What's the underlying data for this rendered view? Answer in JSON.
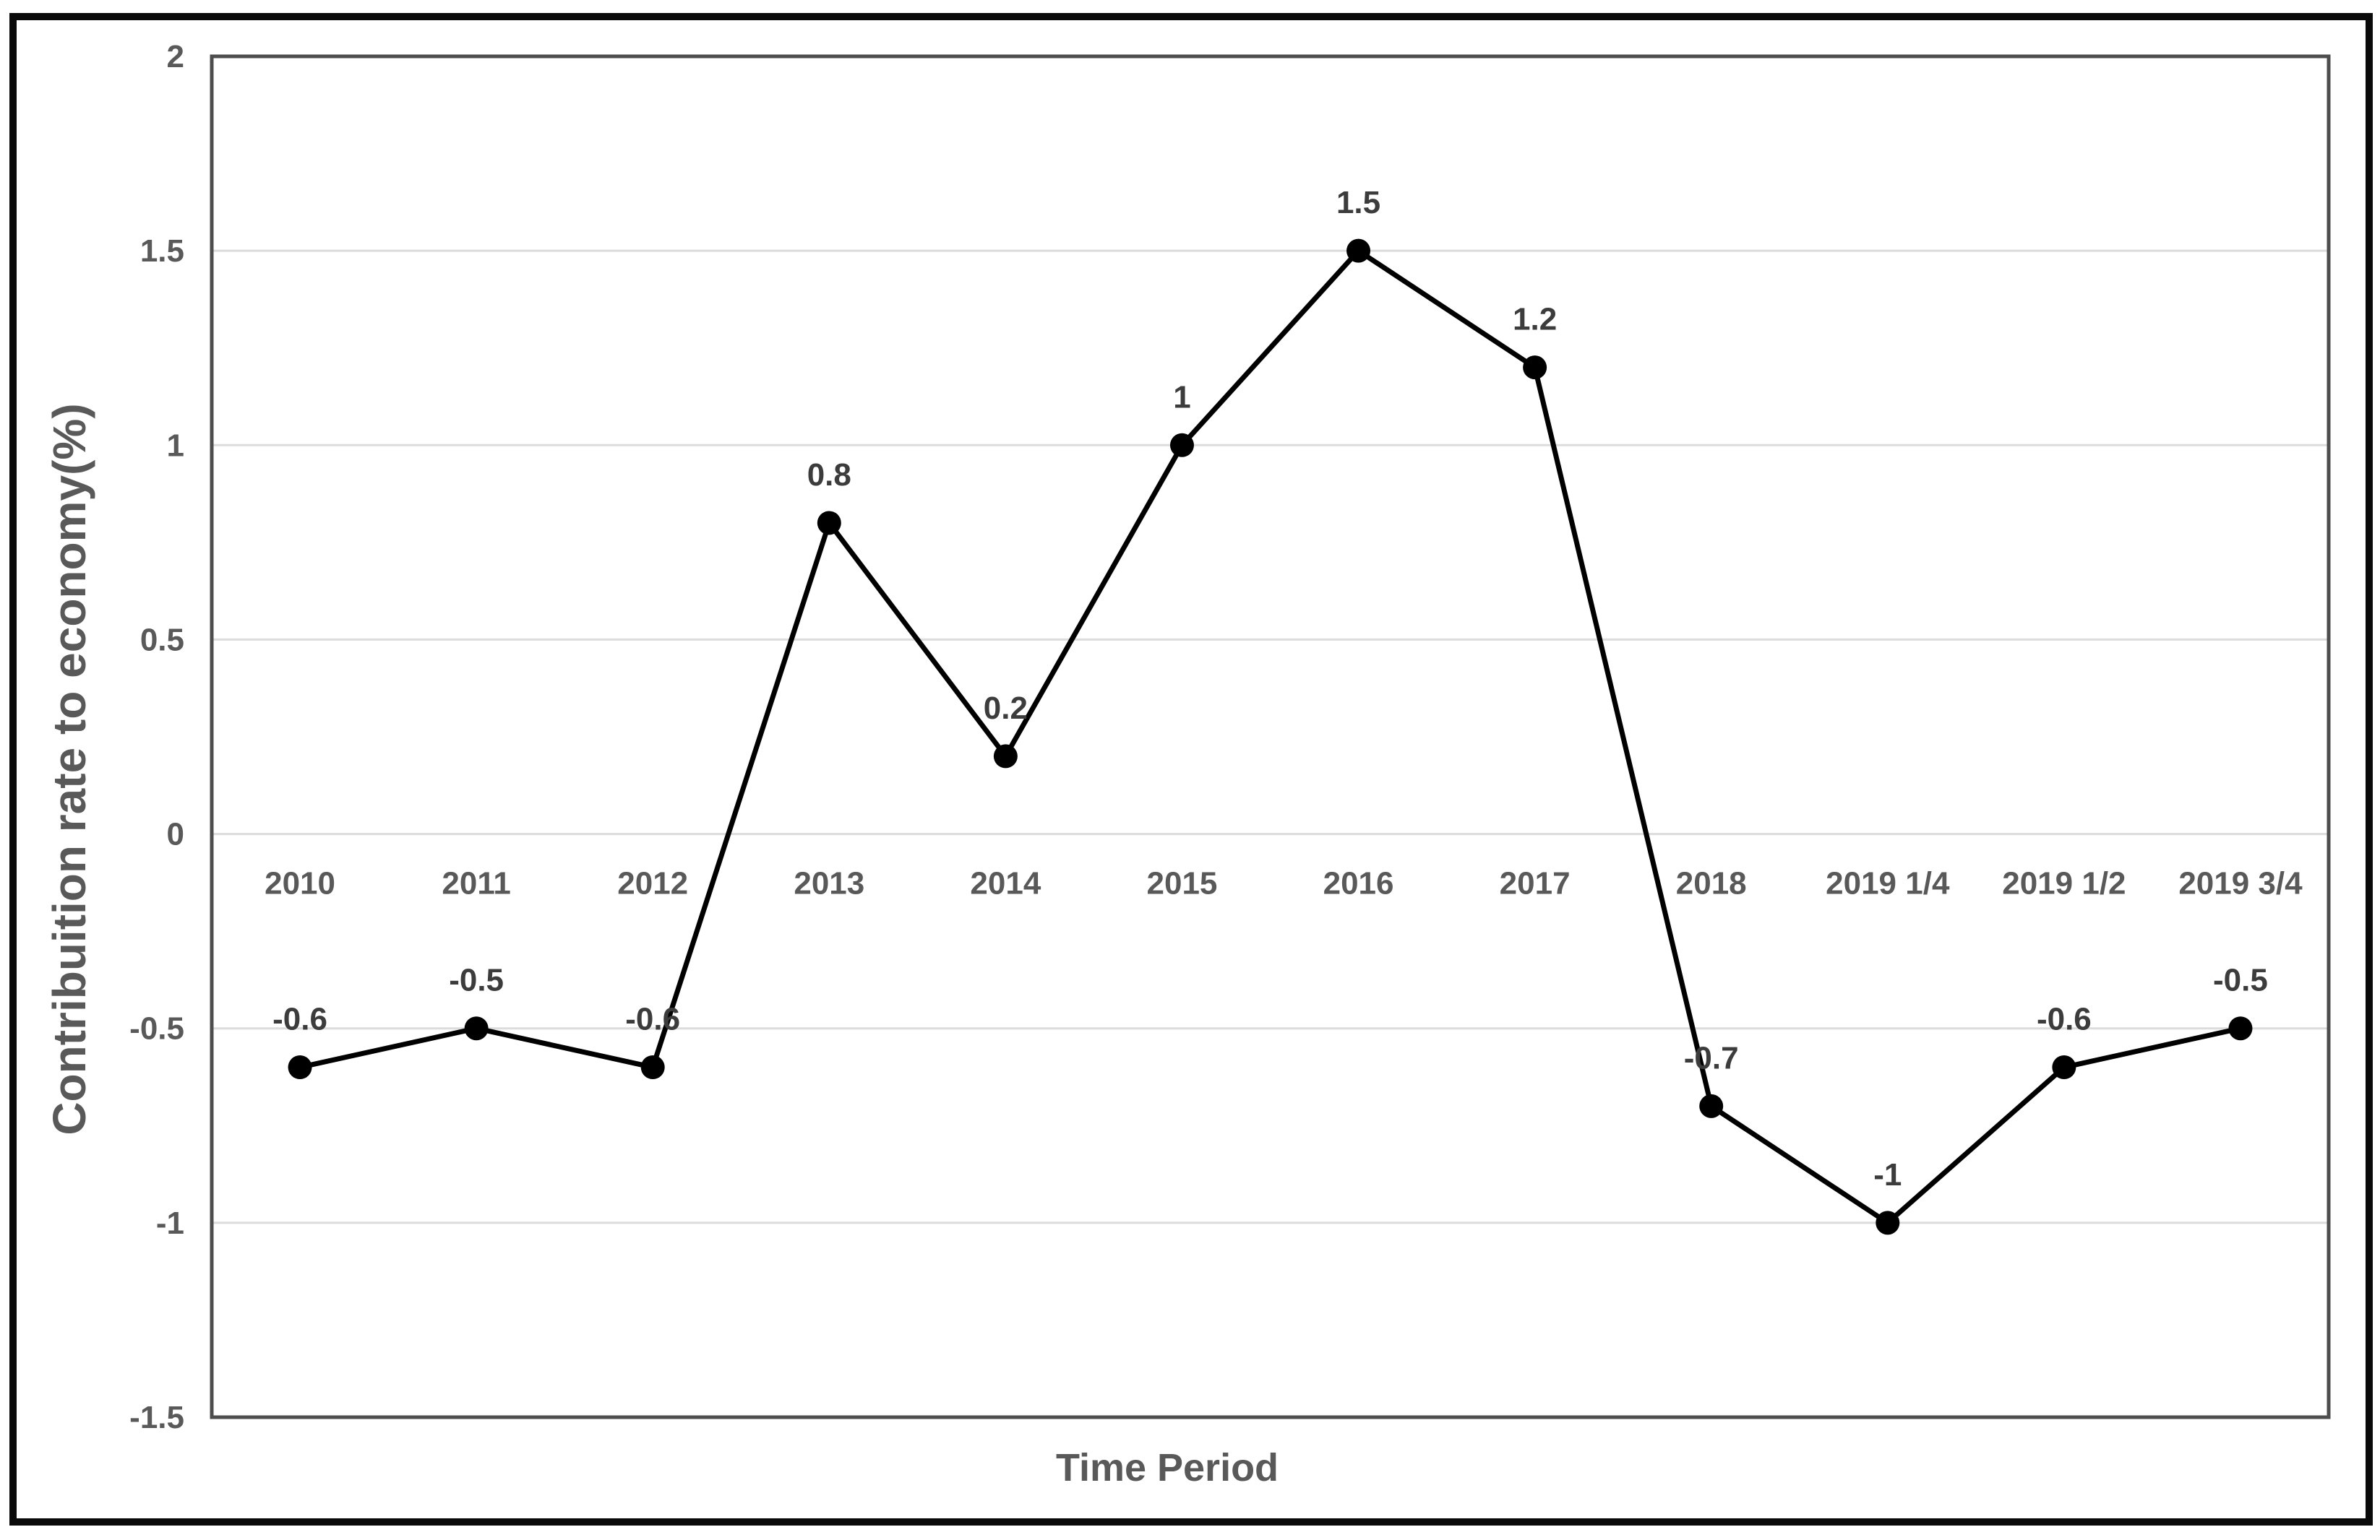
{
  "chart_data": {
    "type": "line",
    "title": "",
    "xlabel": "Time Period",
    "ylabel": "Contribuition rate to economy(%)",
    "categories": [
      "2010",
      "2011",
      "2012",
      "2013",
      "2014",
      "2015",
      "2016",
      "2017",
      "2018",
      "2019 1/4",
      "2019 1/2",
      "2019 3/4"
    ],
    "series": [
      {
        "name": "Contribution rate to economy",
        "values": [
          -0.6,
          -0.5,
          -0.6,
          0.8,
          0.2,
          1,
          1.5,
          1.2,
          -0.7,
          -1,
          -0.6,
          -0.5
        ],
        "data_labels": [
          "-0.6",
          "-0.5",
          "-0.6",
          "0.8",
          "0.2",
          "1",
          "1.5",
          "1.2",
          "-0.7",
          "-1",
          "-0.6",
          "-0.5"
        ]
      }
    ],
    "ylim": [
      -1.5,
      2
    ],
    "y_ticks": [
      "2",
      "1.5",
      "1",
      "0.5",
      "0",
      "-0.5",
      "-1",
      "-1.5"
    ],
    "grid": "horizontal",
    "legend": "none",
    "colors": {
      "line": "#000000",
      "marker": "#000000",
      "gridline": "#dcdcdc",
      "plot_border": "#4d4d4d",
      "axis_text": "#595959",
      "data_label_text": "#3c3c3c",
      "frame": "#0a0a0a",
      "background": "#ffffff"
    }
  }
}
